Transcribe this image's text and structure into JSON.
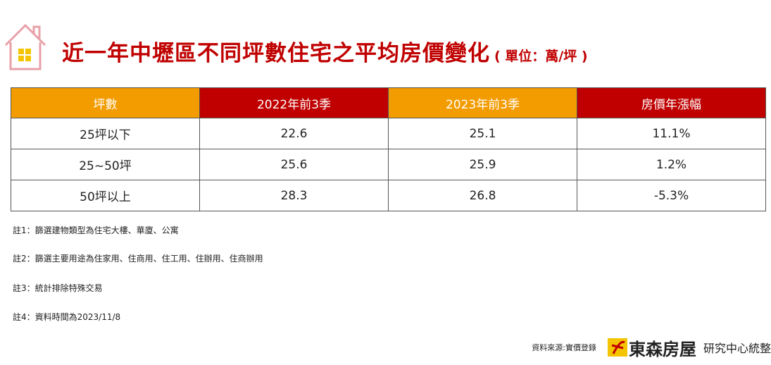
{
  "header": {
    "title": "近一年中壢區不同坪數住宅之平均房價變化",
    "unit": "( 單位：萬/坪 )"
  },
  "table": {
    "columns": [
      "坪數",
      "2022年前3季",
      "2023年前3季",
      "房價年漲幅"
    ],
    "rows": [
      [
        "25坪以下",
        "22.6",
        "25.1",
        "11.1%"
      ],
      [
        "25~50坪",
        "25.6",
        "25.9",
        "1.2%"
      ],
      [
        "50坪以上",
        "28.3",
        "26.8",
        "-5.3%"
      ]
    ]
  },
  "notes": [
    "註1：篩選建物類型為住宅大樓、華廈、公寓",
    "註2：篩選主要用途為住家用、住商用、住工用、住辦用、住商辦用",
    "註3：統計排除特殊交易",
    "註4：資料時間為2023/11/8"
  ],
  "footer": {
    "source": "資料來源:實價登錄",
    "brand": "東森房屋",
    "dept": "研究中心統整"
  }
}
